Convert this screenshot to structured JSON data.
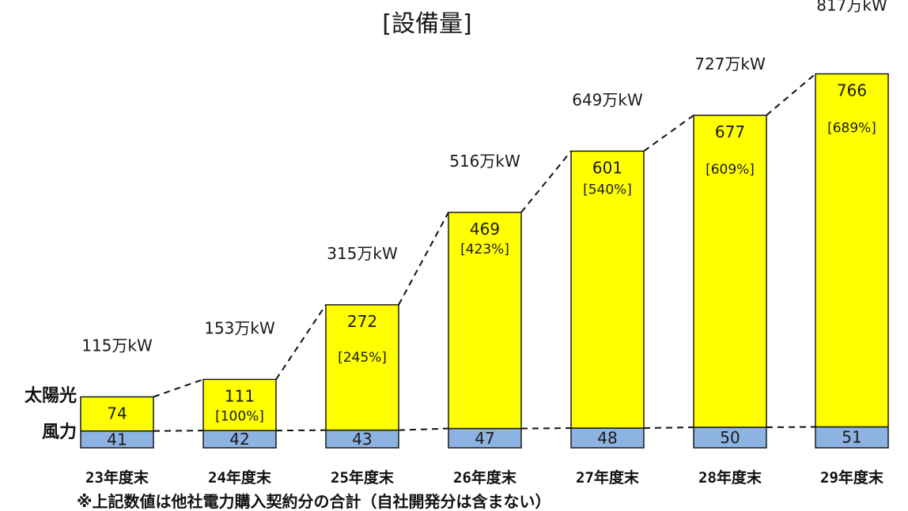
{
  "chart_data": {
    "type": "bar",
    "stacked": true,
    "title": "[設備量]",
    "categories": [
      "23年度末",
      "24年度末",
      "25年度末",
      "26年度末",
      "27年度末",
      "28年度末",
      "29年度末"
    ],
    "series": [
      {
        "name": "風力",
        "values": [
          41,
          42,
          43,
          47,
          48,
          50,
          51
        ],
        "color": "#8db3e2"
      },
      {
        "name": "太陽光",
        "values": [
          74,
          111,
          272,
          469,
          601,
          677,
          766
        ],
        "color": "#ffff00"
      }
    ],
    "percent_labels": [
      "",
      "[100%]",
      "[245%]",
      "[423%]",
      "[540%]",
      "[609%]",
      "[689%]"
    ],
    "total_labels": [
      "115万kW",
      "153万kW",
      "315万kW",
      "516万kW",
      "649万kW",
      "727万kW",
      "817万kW"
    ],
    "ylim": [
      0,
      830
    ],
    "grid": false,
    "legend_position": "left"
  },
  "footnote": "※上記数値は他社電力購入契約分の合計（自社開発分は含まない）",
  "colors": {
    "wind": "#8db3e2",
    "solar": "#ffff00",
    "outline": "#1a1a1a"
  }
}
